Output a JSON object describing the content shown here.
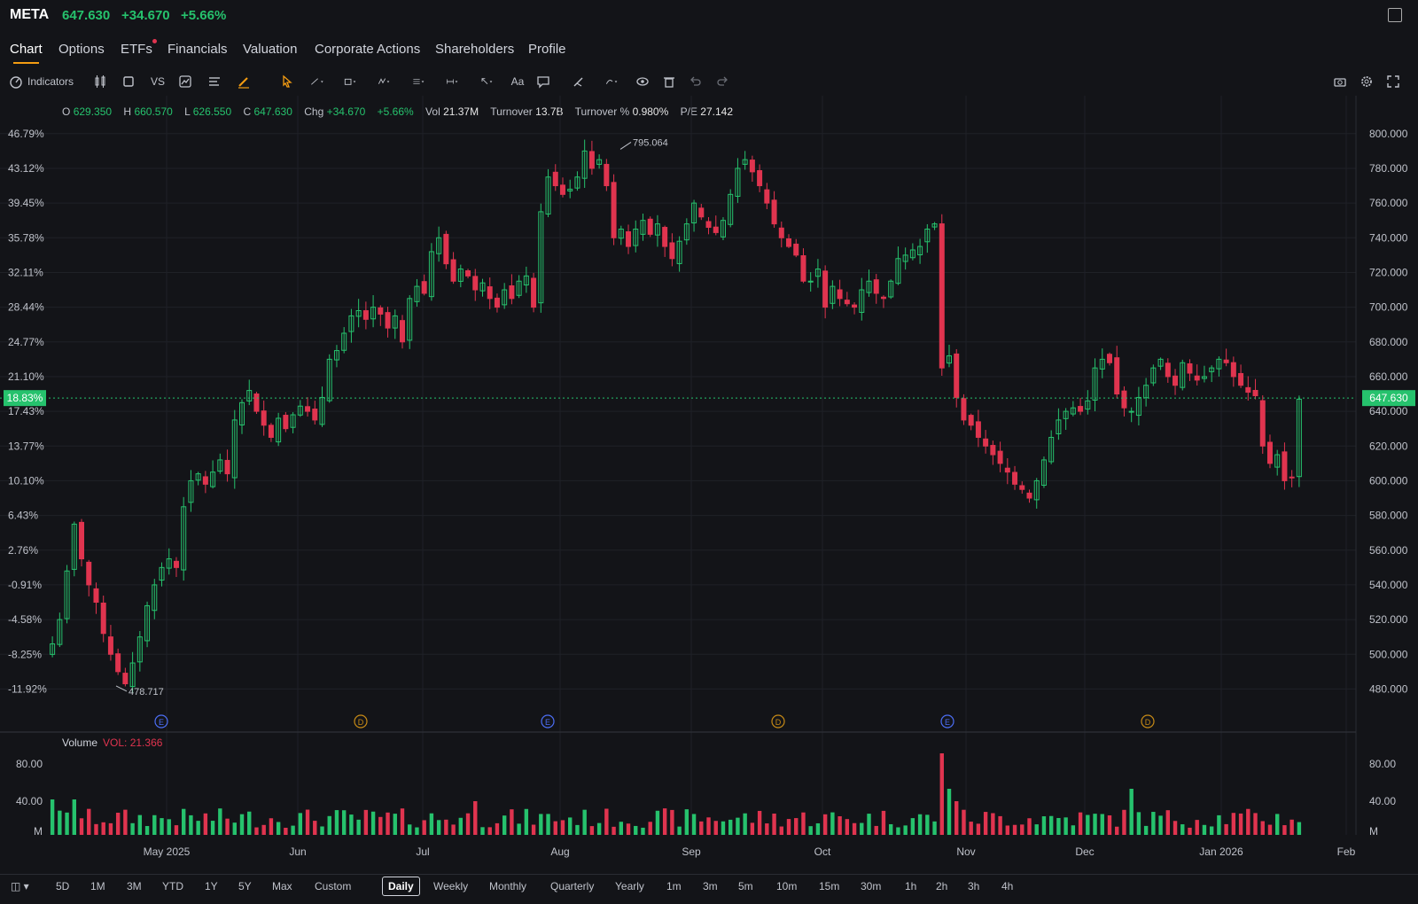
{
  "header": {
    "symbol": "META",
    "price": "647.630",
    "change": "+34.670",
    "change_pct": "+5.66%"
  },
  "tabs": [
    {
      "label": "Chart",
      "active": true
    },
    {
      "label": "Options"
    },
    {
      "label": "ETFs",
      "dot": true
    },
    {
      "label": "Financials"
    },
    {
      "label": "Valuation"
    },
    {
      "label": "Corporate Actions"
    },
    {
      "label": "Shareholders"
    },
    {
      "label": "Profile"
    }
  ],
  "toolbar": {
    "indicators_label": "Indicators",
    "vs_label": "VS",
    "text_label": "Aa"
  },
  "ohlc": {
    "o_label": "O",
    "o": "629.350",
    "h_label": "H",
    "h": "660.570",
    "l_label": "L",
    "l": "626.550",
    "c_label": "C",
    "c": "647.630",
    "chg_label": "Chg",
    "chg": "+34.670",
    "chg_pct": "+5.66%",
    "vol_label": "Vol",
    "vol": "21.37M",
    "turnover_label": "Turnover",
    "turnover": "13.7B",
    "turnover_pct_label": "Turnover %",
    "turnover_pct": "0.980%",
    "pe_label": "P/E",
    "pe": "27.142"
  },
  "volume_panel": {
    "label": "Volume",
    "value_label": "VOL: 21.366"
  },
  "bottom": {
    "ranges": [
      "5D",
      "1M",
      "3M",
      "YTD",
      "1Y",
      "5Y",
      "Max",
      "Custom"
    ],
    "intervals": [
      "Daily",
      "Weekly",
      "Monthly",
      "Quarterly",
      "Yearly",
      "1m",
      "3m",
      "5m",
      "10m",
      "15m",
      "30m",
      "1h",
      "2h",
      "3h",
      "4h"
    ],
    "active_interval": "Daily"
  },
  "colors": {
    "up": "#26c26d",
    "down": "#e0344f",
    "accent": "#f39c12"
  },
  "chart_data": {
    "type": "candlestick",
    "ylim": [
      470,
      805
    ],
    "y_ticks_right": [
      "800.000",
      "780.000",
      "760.000",
      "740.000",
      "720.000",
      "700.000",
      "680.000",
      "660.000",
      "640.000",
      "620.000",
      "600.000",
      "580.000",
      "560.000",
      "540.000",
      "520.000",
      "500.000",
      "480.000"
    ],
    "y_ticks_left": [
      "46.79%",
      "43.12%",
      "39.45%",
      "35.78%",
      "32.11%",
      "28.44%",
      "24.77%",
      "21.10%",
      "17.43%",
      "13.77%",
      "10.10%",
      "6.43%",
      "2.76%",
      "-0.91%",
      "-4.58%",
      "-8.25%",
      "-11.92%"
    ],
    "current_price": "647.630",
    "current_pct": "18.83%",
    "high_annotation": "795.064",
    "low_annotation": "478.717",
    "x_labels": [
      "May 2025",
      "Jun",
      "Jul",
      "Aug",
      "Sep",
      "Oct",
      "Nov",
      "Dec",
      "Jan 2026",
      "Feb"
    ],
    "events": [
      "E",
      "D",
      "E",
      "D",
      "E",
      "D"
    ],
    "volume_ticks": [
      "80.00",
      "40.00",
      "M"
    ],
    "closes": [
      506,
      520,
      548,
      575,
      555,
      540,
      530,
      512,
      500,
      490,
      483,
      495,
      510,
      528,
      540,
      550,
      555,
      550,
      585,
      600,
      604,
      598,
      605,
      612,
      604,
      635,
      645,
      652,
      640,
      632,
      625,
      636,
      630,
      638,
      643,
      640,
      635,
      648,
      670,
      675,
      685,
      695,
      698,
      693,
      700,
      696,
      688,
      695,
      680,
      705,
      712,
      708,
      732,
      740,
      725,
      715,
      722,
      718,
      710,
      714,
      705,
      700,
      710,
      705,
      715,
      718,
      700,
      755,
      775,
      770,
      765,
      768,
      775,
      790,
      780,
      785,
      770,
      740,
      745,
      735,
      745,
      750,
      742,
      748,
      735,
      728,
      738,
      748,
      760,
      752,
      746,
      743,
      750,
      765,
      780,
      785,
      778,
      770,
      760,
      748,
      740,
      735,
      730,
      715,
      715,
      722,
      700,
      712,
      705,
      702,
      700,
      710,
      715,
      708,
      705,
      715,
      728,
      730,
      733,
      735,
      745,
      748,
      665,
      672,
      648,
      635,
      632,
      625,
      620,
      615,
      610,
      605,
      598,
      595,
      590,
      600,
      612,
      625,
      635,
      640,
      642,
      640,
      646,
      665,
      670,
      668,
      650,
      642,
      640,
      648,
      655,
      665,
      670,
      660,
      655,
      668,
      662,
      658,
      660,
      665,
      670,
      668,
      660,
      655,
      651,
      649,
      620,
      610,
      615,
      600,
      602,
      647
    ]
  }
}
